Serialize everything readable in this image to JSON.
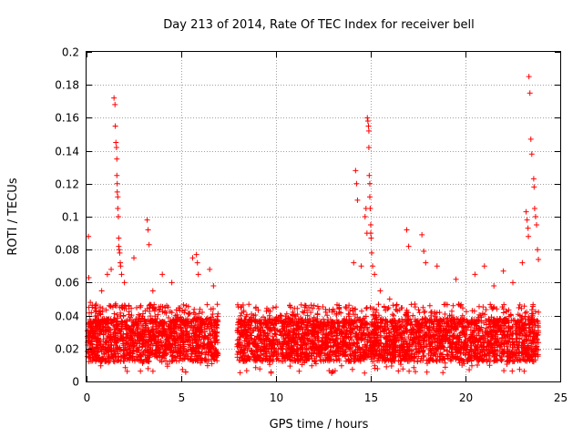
{
  "chart_data": {
    "type": "scatter",
    "title": "Day 213 of 2014, Rate Of TEC Index for receiver bell",
    "xlabel": "GPS time / hours",
    "ylabel": "ROTI / TECUs",
    "xlim": [
      0,
      25
    ],
    "ylim": [
      0,
      0.2
    ],
    "xticks": [
      0,
      5,
      10,
      15,
      20,
      25
    ],
    "xtick_labels": [
      "0",
      "5",
      "10",
      "15",
      "20",
      "25"
    ],
    "yticks": [
      0,
      0.02,
      0.04,
      0.06,
      0.08,
      0.1,
      0.12,
      0.14,
      0.16,
      0.18,
      0.2
    ],
    "ytick_labels": [
      "0",
      "0.02",
      "0.04",
      "0.06",
      "0.08",
      "0.1",
      "0.12",
      "0.14",
      "0.16",
      "0.18",
      "0.2"
    ],
    "grid": true,
    "marker": "+",
    "series_color": "#ff0000",
    "data_gap_hours": [
      6.95,
      7.95
    ],
    "series": [
      {
        "name": "ROTI",
        "x": [
          0.1,
          0.12,
          0.2,
          0.3,
          0.5,
          0.8,
          1.1,
          1.3,
          1.45,
          1.5,
          1.52,
          1.55,
          1.58,
          1.6,
          1.6,
          1.62,
          1.62,
          1.65,
          1.65,
          1.68,
          1.7,
          1.7,
          1.72,
          1.75,
          1.78,
          1.8,
          1.85,
          2.0,
          2.5,
          3.2,
          3.25,
          3.3,
          3.5,
          4.0,
          4.5,
          5.6,
          5.8,
          5.85,
          5.9,
          6.5,
          6.7,
          14.1,
          14.2,
          14.25,
          14.3,
          14.5,
          14.7,
          14.75,
          14.8,
          14.82,
          14.85,
          14.88,
          14.9,
          14.9,
          14.92,
          14.95,
          14.95,
          14.97,
          15.0,
          15.0,
          15.02,
          15.05,
          15.1,
          15.2,
          15.5,
          16.0,
          16.9,
          17.0,
          17.7,
          17.8,
          17.9,
          18.5,
          19.5,
          20.5,
          21.0,
          21.5,
          22.0,
          22.5,
          23.0,
          23.2,
          23.25,
          23.3,
          23.32,
          23.35,
          23.4,
          23.45,
          23.5,
          23.6,
          23.62,
          23.65,
          23.7,
          23.75,
          23.8,
          23.85
        ],
        "y": [
          0.088,
          0.063,
          0.048,
          0.045,
          0.046,
          0.055,
          0.065,
          0.068,
          0.172,
          0.168,
          0.155,
          0.145,
          0.142,
          0.135,
          0.125,
          0.12,
          0.115,
          0.112,
          0.105,
          0.1,
          0.087,
          0.082,
          0.08,
          0.078,
          0.072,
          0.07,
          0.065,
          0.06,
          0.075,
          0.098,
          0.092,
          0.083,
          0.055,
          0.065,
          0.06,
          0.075,
          0.077,
          0.072,
          0.065,
          0.068,
          0.058,
          0.072,
          0.128,
          0.12,
          0.11,
          0.07,
          0.1,
          0.105,
          0.09,
          0.16,
          0.158,
          0.155,
          0.152,
          0.142,
          0.125,
          0.12,
          0.112,
          0.105,
          0.095,
          0.09,
          0.087,
          0.078,
          0.07,
          0.065,
          0.055,
          0.05,
          0.092,
          0.082,
          0.089,
          0.079,
          0.072,
          0.07,
          0.062,
          0.065,
          0.07,
          0.058,
          0.067,
          0.06,
          0.072,
          0.103,
          0.098,
          0.093,
          0.088,
          0.185,
          0.175,
          0.147,
          0.138,
          0.123,
          0.118,
          0.105,
          0.1,
          0.095,
          0.08,
          0.074
        ]
      }
    ]
  }
}
